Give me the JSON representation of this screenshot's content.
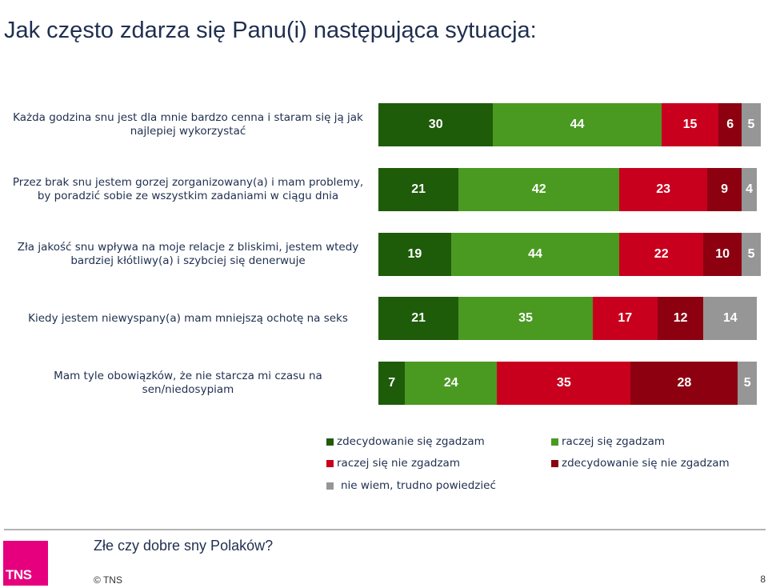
{
  "page": {
    "title": "Jak często zdarza się Panu(i) następująca sytuacja:",
    "footer_title": "Złe czy dobre sny Polaków?",
    "copyright": "© TNS",
    "page_number": "8",
    "logo_text": "TNS"
  },
  "colors": {
    "strongly_agree": "#1e5c0a",
    "agree": "#4a9a22",
    "disagree": "#c8001e",
    "strongly_disagree": "#8c0010",
    "dont_know": "#969696",
    "logo": "#e6007e"
  },
  "chart_data": {
    "type": "bar",
    "orientation": "horizontal",
    "stacked": true,
    "categories": [
      "Każda godzina snu jest dla mnie bardzo cenna i staram się ją jak najlepiej wykorzystać",
      "Przez brak snu jestem gorzej zorganizowany(a) i mam problemy, by poradzić sobie ze wszystkim zadaniami w ciągu dnia",
      "Zła jakość snu wpływa na moje relacje z bliskimi, jestem wtedy bardziej kłótliwy(a) i szybciej się denerwuje",
      "Kiedy jestem niewyspany(a) mam mniejszą ochotę na seks",
      "Mam tyle obowiązków, że nie starcza mi czasu na sen/niedosypiam"
    ],
    "series": [
      {
        "name": "zdecydowanie się zgadzam",
        "color": "#1e5c0a",
        "values": [
          30,
          21,
          19,
          21,
          7
        ]
      },
      {
        "name": "raczej się zgadzam",
        "color": "#4a9a22",
        "values": [
          44,
          42,
          44,
          35,
          24
        ]
      },
      {
        "name": "raczej się nie zgadzam",
        "color": "#c8001e",
        "values": [
          15,
          23,
          22,
          17,
          35
        ]
      },
      {
        "name": "zdecydowanie się nie zgadzam",
        "color": "#8c0010",
        "values": [
          6,
          9,
          10,
          12,
          28
        ]
      },
      {
        "name": "nie wiem, trudno powiedzieć",
        "color": "#969696",
        "values": [
          5,
          4,
          5,
          14,
          5
        ]
      }
    ],
    "xlim": [
      0,
      100
    ],
    "legend_position": "bottom",
    "grid": false
  }
}
